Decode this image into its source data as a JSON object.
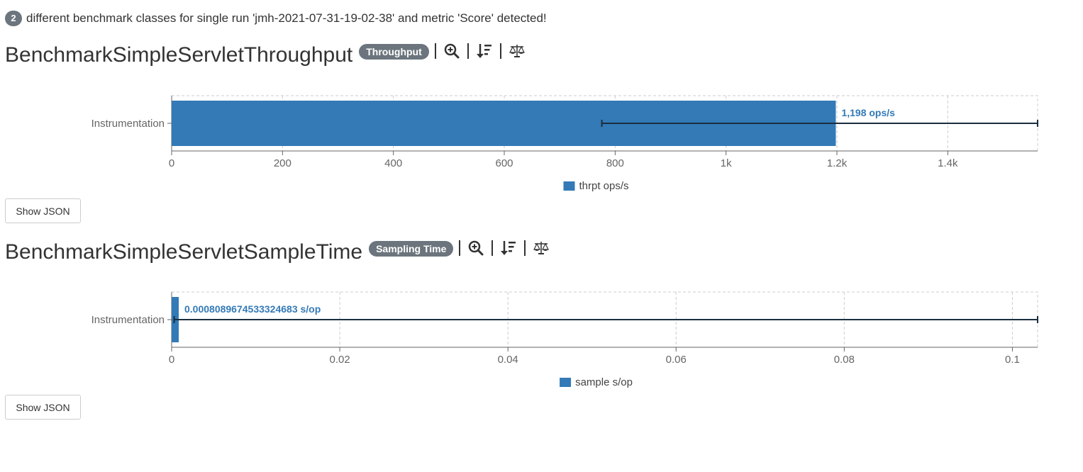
{
  "summary": {
    "count": "2",
    "text": "different benchmark classes for single run 'jmh-2021-07-31-19-02-38' and metric 'Score' detected!"
  },
  "benchmarks": [
    {
      "title": "BenchmarkSimpleServletThroughput",
      "mode": "Throughput",
      "show_json_label": "Show JSON",
      "chart_data": {
        "type": "bar",
        "orientation": "horizontal",
        "categories": [
          "Instrumentation"
        ],
        "series": [
          {
            "name": "thrpt ops/s",
            "values": [
              1198
            ],
            "error": [
              [
                776,
                1562
              ]
            ]
          }
        ],
        "data_labels": [
          "1,198 ops/s"
        ],
        "xlim": [
          0,
          1562
        ],
        "xticks": [
          0,
          200,
          400,
          600,
          800,
          1000,
          1200,
          1400
        ],
        "xtick_labels": [
          "0",
          "200",
          "400",
          "600",
          "800",
          "1k",
          "1.2k",
          "1.4k"
        ],
        "grid": true,
        "legend": "bottom",
        "color": "#337ab7"
      }
    },
    {
      "title": "BenchmarkSimpleServletSampleTime",
      "mode": "Sampling Time",
      "show_json_label": "Show JSON",
      "chart_data": {
        "type": "bar",
        "orientation": "horizontal",
        "categories": [
          "Instrumentation"
        ],
        "series": [
          {
            "name": "sample s/op",
            "values": [
              0.0008089674533324683
            ],
            "error": [
              [
                0.0003,
                0.103
              ]
            ]
          }
        ],
        "data_labels": [
          "0.0008089674533324683 s/op"
        ],
        "xlim": [
          0,
          0.103
        ],
        "xticks": [
          0,
          0.02,
          0.04,
          0.06,
          0.08,
          0.1
        ],
        "xtick_labels": [
          "0",
          "0.02",
          "0.04",
          "0.06",
          "0.08",
          "0.1"
        ],
        "grid": true,
        "legend": "bottom",
        "color": "#337ab7"
      }
    }
  ],
  "icons": [
    "zoom-in-icon",
    "sort-descending-icon",
    "balance-scale-icon"
  ]
}
